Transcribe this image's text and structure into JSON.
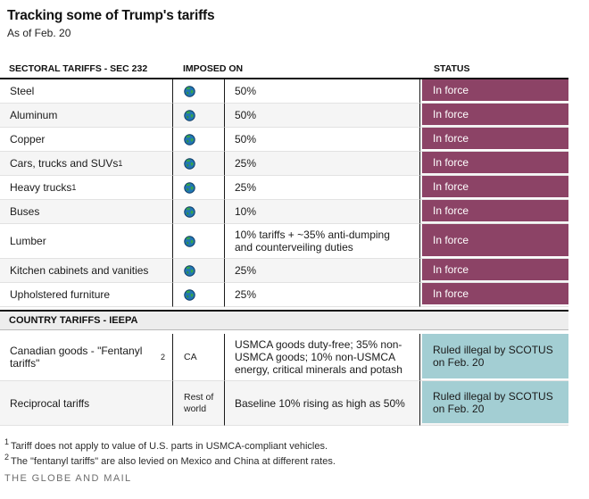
{
  "chart_data": {
    "type": "table",
    "title": "Tracking some of Trump's tariffs",
    "subtitle": "As of Feb. 20",
    "header": {
      "col_item": "SECTORAL TARIFFS - SEC 232",
      "col_imposed": "IMPOSED ON",
      "col_status": "STATUS"
    },
    "sections": {
      "sectoral": {
        "rows": [
          {
            "item": "Steel",
            "imposed_icon": "globe-icon",
            "rate": "50%",
            "status": "In force",
            "status_type": "in_force"
          },
          {
            "item": "Aluminum",
            "imposed_icon": "globe-icon",
            "rate": "50%",
            "status": "In force",
            "status_type": "in_force"
          },
          {
            "item": "Copper",
            "imposed_icon": "globe-icon",
            "rate": "50%",
            "status": "In force",
            "status_type": "in_force"
          },
          {
            "item": "Cars, trucks and SUVs",
            "item_sup": "1",
            "imposed_icon": "globe-icon",
            "rate": "25%",
            "status": "In force",
            "status_type": "in_force"
          },
          {
            "item": "Heavy trucks",
            "item_sup": "1",
            "imposed_icon": "globe-icon",
            "rate": "25%",
            "status": "In force",
            "status_type": "in_force"
          },
          {
            "item": "Buses",
            "imposed_icon": "globe-icon",
            "rate": "10%",
            "status": "In force",
            "status_type": "in_force"
          },
          {
            "item": "Lumber",
            "imposed_icon": "globe-icon",
            "rate": "10% tariffs + ~35% anti-dumping and counterveiling duties",
            "status": "In force",
            "status_type": "in_force"
          },
          {
            "item": "Kitchen cabinets and vanities",
            "imposed_icon": "globe-icon",
            "rate": "25%",
            "status": "In force",
            "status_type": "in_force"
          },
          {
            "item": "Upholstered furniture",
            "imposed_icon": "globe-icon",
            "rate": "25%",
            "status": "In force",
            "status_type": "in_force"
          }
        ]
      },
      "country": {
        "band_label": "COUNTRY TARIFFS - IEEPA",
        "rows": [
          {
            "item": "Canadian goods - \"Fentanyl tariffs\"",
            "item_sup": "2",
            "imposed_text": "CA",
            "rate": "USMCA goods duty-free; 35% non-USMCA goods; 10% non-USMCA energy, critical minerals and potash",
            "status": "Ruled illegal by SCOTUS on Feb. 20",
            "status_type": "ruled_illegal"
          },
          {
            "item": "Reciprocal tariffs",
            "imposed_text": "Rest of world",
            "rate": "Baseline 10% rising as high as 50%",
            "status": "Ruled illegal by SCOTUS on Feb. 20",
            "status_type": "ruled_illegal"
          }
        ]
      }
    },
    "footnotes": [
      {
        "marker": "1",
        "text": "Tariff does not apply to value of U.S. parts in USMCA-compliant vehicles."
      },
      {
        "marker": "2",
        "text": "The \"fentanyl tariffs\" are also levied on Mexico and China at different rates."
      }
    ],
    "source": "THE GLOBE AND MAIL",
    "colors": {
      "in_force_bg": "#8c4366",
      "in_force_text": "#ffffff",
      "ruled_illegal_bg": "#a3ced3",
      "ruled_illegal_text": "#1a1a1a",
      "stripe": "#f5f5f5",
      "band_bg": "#ededed"
    }
  }
}
